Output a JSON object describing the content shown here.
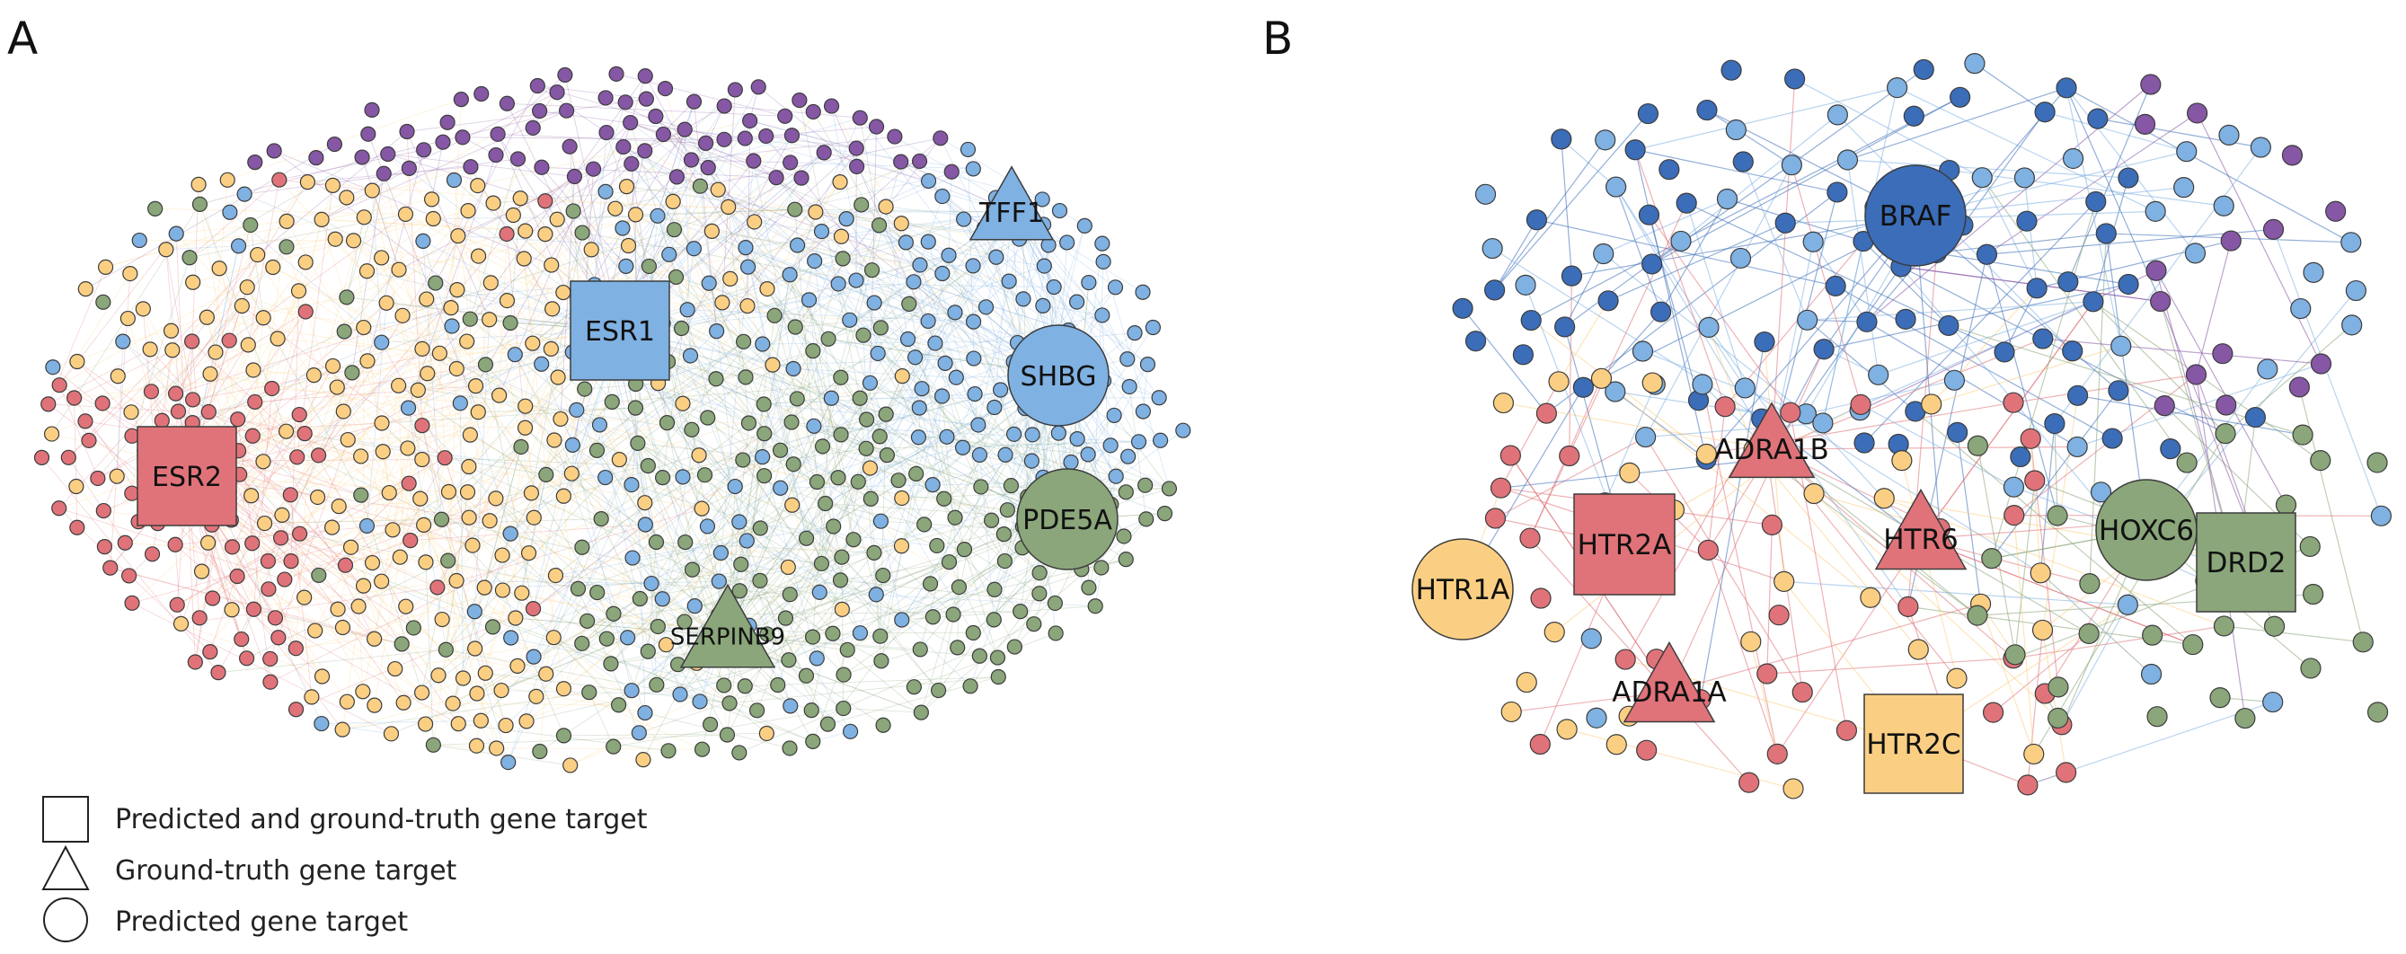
{
  "colors": {
    "red": "#e07379",
    "yellow": "#fbcf83",
    "light_blue": "#7fb1e2",
    "green": "#8aa67a",
    "purple": "#8657a5",
    "dark_blue": "#3b6db8",
    "node_stroke": "#3c3c3c"
  },
  "legend": {
    "square": "Predicted and ground-truth gene target",
    "triangle": "Ground-truth gene target",
    "circle": "Predicted gene target"
  },
  "panels": [
    {
      "letter": "A",
      "highlighted": [
        {
          "label": "ESR1",
          "shape": "square",
          "color": "light_blue"
        },
        {
          "label": "ESR2",
          "shape": "square",
          "color": "red"
        },
        {
          "label": "TFF1",
          "shape": "triangle",
          "color": "light_blue"
        },
        {
          "label": "SHBG",
          "shape": "circle",
          "color": "light_blue"
        },
        {
          "label": "PDE5A",
          "shape": "circle",
          "color": "green"
        },
        {
          "label": "SERPINB9",
          "shape": "triangle",
          "color": "green"
        }
      ]
    },
    {
      "letter": "B",
      "highlighted": [
        {
          "label": "BRAF",
          "shape": "circle",
          "color": "dark_blue"
        },
        {
          "label": "ADRA1B",
          "shape": "triangle",
          "color": "red"
        },
        {
          "label": "HTR2A",
          "shape": "square",
          "color": "red"
        },
        {
          "label": "HTR6",
          "shape": "triangle",
          "color": "red"
        },
        {
          "label": "HOXC6",
          "shape": "circle",
          "color": "green"
        },
        {
          "label": "DRD2",
          "shape": "square",
          "color": "green"
        },
        {
          "label": "HTR1A",
          "shape": "circle",
          "color": "yellow"
        },
        {
          "label": "ADRA1A",
          "shape": "triangle",
          "color": "red"
        },
        {
          "label": "HTR2C",
          "shape": "square",
          "color": "yellow"
        }
      ]
    }
  ]
}
